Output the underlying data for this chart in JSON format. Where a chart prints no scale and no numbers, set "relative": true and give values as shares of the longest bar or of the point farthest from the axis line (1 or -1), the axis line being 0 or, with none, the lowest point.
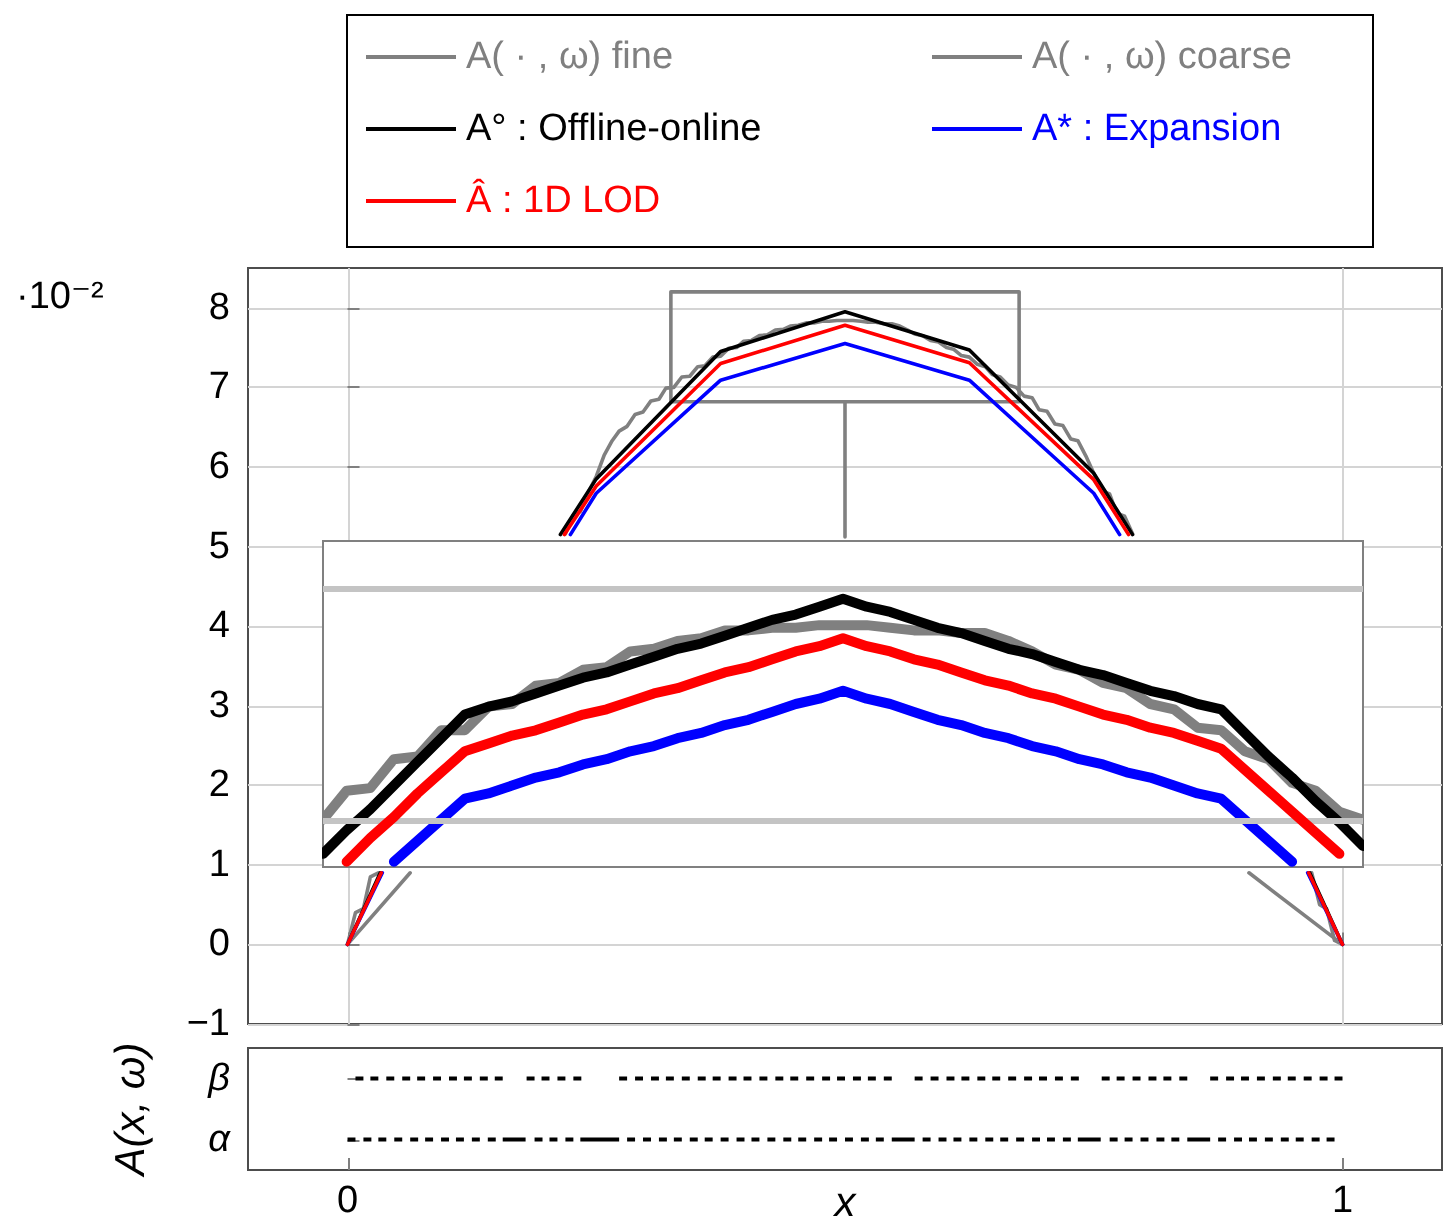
{
  "chart_data": [
    {
      "type": "line",
      "series": [
        {
          "color": "#808080",
          "x": [
            0.5,
            0.325,
            0.325,
            0.675,
            0.675,
            0.5,
            0.5
          ],
          "values": [
            6.82,
            6.82,
            8.2,
            8.2,
            6.82,
            6.82,
            5.12
          ]
        },
        {
          "name": "A( · , ω) fine",
          "color": "#808080",
          "x": [
            0,
            0.008,
            0.016,
            0.023,
            0.031,
            0.12,
            0.219,
            0.227,
            0.234,
            0.242,
            0.25,
            0.258,
            0.266,
            0.273,
            0.281,
            0.289,
            0.297,
            0.305,
            0.313,
            0.32,
            0.328,
            0.336,
            0.344,
            0.352,
            0.359,
            0.367,
            0.375,
            0.383,
            0.391,
            0.398,
            0.406,
            0.414,
            0.422,
            0.43,
            0.438,
            0.445,
            0.453,
            0.461,
            0.469,
            0.477,
            0.484,
            0.492,
            0.5,
            0.508,
            0.516,
            0.523,
            0.531,
            0.539,
            0.547,
            0.555,
            0.563,
            0.57,
            0.578,
            0.586,
            0.594,
            0.602,
            0.609,
            0.617,
            0.625,
            0.633,
            0.641,
            0.648,
            0.656,
            0.664,
            0.672,
            0.68,
            0.688,
            0.695,
            0.703,
            0.711,
            0.719,
            0.727,
            0.734,
            0.742,
            0.75,
            0.758,
            0.766,
            0.773,
            0.781,
            0.789,
            0.88,
            0.969,
            0.977,
            0.984,
            0.992,
            1
          ],
          "values": [
            0,
            0.4,
            0.45,
            0.85,
            0.9,
            null,
            5.16,
            5.4,
            5.44,
            5.68,
            5.88,
            6.15,
            6.33,
            6.45,
            6.51,
            6.66,
            6.69,
            6.83,
            6.85,
            6.99,
            7.0,
            7.13,
            7.14,
            7.26,
            7.27,
            7.38,
            7.39,
            7.49,
            7.5,
            7.58,
            7.59,
            7.65,
            7.66,
            7.72,
            7.73,
            7.77,
            7.78,
            7.81,
            7.81,
            7.83,
            7.83,
            7.84,
            7.84,
            7.84,
            7.83,
            7.82,
            7.82,
            7.8,
            7.8,
            7.77,
            7.72,
            7.67,
            7.65,
            7.59,
            7.57,
            7.5,
            7.48,
            7.4,
            7.38,
            7.29,
            7.26,
            7.16,
            7.13,
            7.03,
            7.0,
            6.89,
            6.87,
            6.72,
            6.7,
            6.54,
            6.52,
            6.35,
            6.33,
            6.14,
            5.92,
            5.7,
            5.66,
            5.42,
            5.38,
            5.16,
            null,
            0.9,
            0.5,
            0.45,
            0.05,
            0
          ]
        },
        {
          "name": "A( · , ω) coarse",
          "color": "#808080",
          "x": [
            0,
            0.063,
            0.5,
            0.906,
            1
          ],
          "values": [
            0,
            0.9,
            null,
            0.9,
            0
          ]
        },
        {
          "name": "A° : Offline-online",
          "color": "#000000",
          "x": [
            0,
            0.033,
            0.125,
            0.214,
            0.25,
            0.375,
            0.5,
            0.625,
            0.75,
            0.789,
            0.875,
            0.967,
            1
          ],
          "values": [
            0,
            0.9,
            null,
            5.15,
            5.85,
            7.45,
            7.95,
            7.47,
            5.92,
            5.15,
            null,
            0.9,
            0
          ]
        },
        {
          "name": "A* : Expansion",
          "color": "#0000ff",
          "x": [
            0,
            0.035,
            0.125,
            0.224,
            0.25,
            0.375,
            0.5,
            0.625,
            0.75,
            0.776,
            0.875,
            0.965,
            1
          ],
          "values": [
            0,
            0.9,
            null,
            5.15,
            5.67,
            7.09,
            7.55,
            7.09,
            5.67,
            5.15,
            null,
            0.9,
            0
          ]
        },
        {
          "name": "Â : 1D LOD",
          "color": "#ff0000",
          "x": [
            0,
            0.034,
            0.125,
            0.218,
            0.25,
            0.375,
            0.5,
            0.625,
            0.75,
            0.785,
            0.875,
            0.966,
            1
          ],
          "values": [
            0,
            0.9,
            null,
            5.15,
            5.76,
            7.3,
            7.78,
            7.31,
            5.84,
            5.15,
            null,
            0.9,
            0
          ]
        }
      ],
      "xlim": [
        -0.1,
        1.1
      ],
      "xticks": [
        {
          "value": 0,
          "label": null
        },
        {
          "value": 1,
          "label": null
        }
      ],
      "ylim": [
        -1,
        8.5
      ],
      "yticks": [
        -1,
        0,
        1,
        2,
        3,
        4,
        5,
        6,
        7,
        8
      ],
      "tick_labels": "y",
      "grid": true,
      "legend": "top",
      "annotations": [
        "·10⁻²"
      ]
    },
    {
      "type": "line",
      "relative": true,
      "categories": [
        null,
        null,
        null,
        null,
        null,
        null,
        null,
        null,
        null,
        null,
        null,
        null,
        null,
        null,
        null,
        null,
        null,
        null,
        null,
        null,
        null,
        null,
        null,
        null,
        null,
        null,
        null,
        null,
        null,
        null,
        null,
        null,
        null,
        null,
        null,
        null,
        null,
        null,
        null,
        null,
        null,
        null,
        null,
        null,
        null
      ],
      "series": [
        {
          "color": "#808080",
          "values": [
            0.16,
            0.27,
            0.28,
            0.39,
            0.4,
            0.5,
            0.5,
            0.59,
            0.6,
            0.67,
            0.68,
            0.73,
            0.74,
            0.8,
            0.81,
            0.84,
            0.85,
            0.88,
            0.88,
            0.89,
            0.89,
            0.9,
            0.9,
            0.9,
            0.89,
            0.88,
            0.88,
            0.87,
            0.87,
            0.84,
            0.8,
            0.75,
            0.73,
            0.68,
            0.66,
            0.6,
            0.58,
            0.51,
            0.5,
            0.42,
            0.39,
            0.3,
            0.27,
            0.19,
            0.16
          ]
        },
        {
          "color": "#000000",
          "values": [
            0.03,
            0.12,
            0.2,
            0.29,
            0.38,
            0.47,
            0.56,
            0.59,
            0.61,
            0.64,
            0.67,
            0.7,
            0.72,
            0.75,
            0.78,
            0.81,
            0.83,
            0.86,
            0.89,
            0.92,
            0.94,
            0.97,
            1,
            0.97,
            0.95,
            0.92,
            0.89,
            0.87,
            0.84,
            0.81,
            0.79,
            0.76,
            0.73,
            0.71,
            0.68,
            0.65,
            0.63,
            0.6,
            0.58,
            0.49,
            0.4,
            0.32,
            0.23,
            0.15,
            0.06
          ]
        },
        {
          "color": "#0000ff",
          "values": [
            null,
            null,
            null,
            0,
            0.08,
            0.16,
            0.24,
            0.26,
            0.29,
            0.32,
            0.34,
            0.37,
            0.39,
            0.42,
            0.44,
            0.47,
            0.49,
            0.52,
            0.54,
            0.57,
            0.6,
            0.62,
            0.65,
            0.62,
            0.6,
            0.57,
            0.54,
            0.52,
            0.49,
            0.47,
            0.44,
            0.42,
            0.39,
            0.37,
            0.34,
            0.32,
            0.29,
            0.26,
            0.24,
            0.16,
            0.08,
            0,
            null,
            null,
            null
          ]
        },
        {
          "color": "#ff0000",
          "values": [
            null,
            0,
            0.09,
            0.17,
            0.26,
            0.34,
            0.42,
            0.45,
            0.48,
            0.5,
            0.53,
            0.56,
            0.58,
            0.61,
            0.64,
            0.66,
            0.69,
            0.72,
            0.74,
            0.77,
            0.8,
            0.82,
            0.85,
            0.82,
            0.8,
            0.77,
            0.75,
            0.72,
            0.69,
            0.67,
            0.64,
            0.62,
            0.59,
            0.56,
            0.54,
            0.51,
            0.49,
            0.46,
            0.43,
            0.35,
            0.27,
            0.19,
            0.11,
            0.03,
            null
          ]
        }
      ],
      "ref_lines": [
        {
          "axis": "y",
          "value": 0.16,
          "color": "#c4c4c4"
        },
        {
          "axis": "y",
          "value": 1.04,
          "color": "#c4c4c4"
        }
      ],
      "tick_labels": false
    },
    {
      "type": "bar",
      "orientation": "horizontal",
      "categories": [
        "β",
        "α"
      ],
      "series": [
        {
          "color": "#000000",
          "base": [
            0.008,
            0
          ],
          "values": [
            0.008,
            0.008
          ]
        },
        {
          "color": "#000000",
          "base": [
            0.023,
            0.016
          ],
          "values": [
            0.008,
            0.008
          ]
        },
        {
          "color": "#000000",
          "base": [
            0.039,
            0.031
          ],
          "values": [
            0.008,
            0.008
          ]
        },
        {
          "color": "#000000",
          "base": [
            0.055,
            0.047
          ],
          "values": [
            0.008,
            0.008
          ]
        },
        {
          "color": "#000000",
          "base": [
            0.07,
            0.063
          ],
          "values": [
            0.008,
            0.008
          ]
        },
        {
          "color": "#000000",
          "base": [
            0.086,
            0.078
          ],
          "values": [
            0.008,
            0.008
          ]
        },
        {
          "color": "#000000",
          "base": [
            0.102,
            0.094
          ],
          "values": [
            0.008,
            0.008
          ]
        },
        {
          "color": "#000000",
          "base": [
            0.117,
            0.109
          ],
          "values": [
            0.008,
            0.008
          ]
        },
        {
          "color": "#000000",
          "base": [
            0.133,
            0.125
          ],
          "values": [
            0.008,
            0.008
          ]
        },
        {
          "color": "#000000",
          "base": [
            0.148,
            0.141
          ],
          "values": [
            0.008,
            0.008
          ]
        },
        {
          "color": "#000000",
          "base": [
            0.18,
            0.156
          ],
          "values": [
            0.008,
            0.023
          ]
        },
        {
          "color": "#000000",
          "base": [
            0.195,
            0.188
          ],
          "values": [
            0.008,
            0.008
          ]
        },
        {
          "color": "#000000",
          "base": [
            0.211,
            0.203
          ],
          "values": [
            0.008,
            0.008
          ]
        },
        {
          "color": "#000000",
          "base": [
            0.227,
            0.219
          ],
          "values": [
            0.008,
            0.008
          ]
        },
        {
          "color": "#000000",
          "base": [
            0.273,
            0.234
          ],
          "values": [
            0.008,
            0.039
          ]
        },
        {
          "color": "#000000",
          "base": [
            0.289,
            0.281
          ],
          "values": [
            0.008,
            0.008
          ]
        },
        {
          "color": "#000000",
          "base": [
            0.305,
            0.297
          ],
          "values": [
            0.008,
            0.008
          ]
        },
        {
          "color": "#000000",
          "base": [
            0.32,
            0.313
          ],
          "values": [
            0.008,
            0.008
          ]
        },
        {
          "color": "#000000",
          "base": [
            0.336,
            0.328
          ],
          "values": [
            0.008,
            0.008
          ]
        },
        {
          "color": "#000000",
          "base": [
            0.352,
            0.344
          ],
          "values": [
            0.008,
            0.008
          ]
        },
        {
          "color": "#000000",
          "base": [
            0.367,
            0.359
          ],
          "values": [
            0.008,
            0.008
          ]
        },
        {
          "color": "#000000",
          "base": [
            0.383,
            0.375
          ],
          "values": [
            0.008,
            0.008
          ]
        },
        {
          "color": "#000000",
          "base": [
            0.398,
            0.391
          ],
          "values": [
            0.008,
            0.008
          ]
        },
        {
          "color": "#000000",
          "base": [
            0.414,
            0.406
          ],
          "values": [
            0.008,
            0.008
          ]
        },
        {
          "color": "#000000",
          "base": [
            0.43,
            0.422
          ],
          "values": [
            0.008,
            0.008
          ]
        },
        {
          "color": "#000000",
          "base": [
            0.445,
            0.438
          ],
          "values": [
            0.008,
            0.008
          ]
        },
        {
          "color": "#000000",
          "base": [
            0.461,
            0.453
          ],
          "values": [
            0.008,
            0.008
          ]
        },
        {
          "color": "#000000",
          "base": [
            0.477,
            0.469
          ],
          "values": [
            0.008,
            0.008
          ]
        },
        {
          "color": "#000000",
          "base": [
            0.492,
            0.484
          ],
          "values": [
            0.008,
            0.008
          ]
        },
        {
          "color": "#000000",
          "base": [
            0.508,
            0.5
          ],
          "values": [
            0.008,
            0.008
          ]
        },
        {
          "color": "#000000",
          "base": [
            0.523,
            0.516
          ],
          "values": [
            0.008,
            0.008
          ]
        },
        {
          "color": "#000000",
          "base": [
            0.539,
            0.531
          ],
          "values": [
            0.008,
            0.008
          ]
        },
        {
          "color": "#000000",
          "base": [
            0.57,
            0.547
          ],
          "values": [
            0.008,
            0.023
          ]
        },
        {
          "color": "#000000",
          "base": [
            0.586,
            0.578
          ],
          "values": [
            0.008,
            0.008
          ]
        },
        {
          "color": "#000000",
          "base": [
            0.602,
            0.594
          ],
          "values": [
            0.008,
            0.008
          ]
        },
        {
          "color": "#000000",
          "base": [
            0.617,
            0.609
          ],
          "values": [
            0.008,
            0.008
          ]
        },
        {
          "color": "#000000",
          "base": [
            0.633,
            0.625
          ],
          "values": [
            0.008,
            0.008
          ]
        },
        {
          "color": "#000000",
          "base": [
            0.648,
            0.641
          ],
          "values": [
            0.008,
            0.008
          ]
        },
        {
          "color": "#000000",
          "base": [
            0.664,
            0.656
          ],
          "values": [
            0.008,
            0.008
          ]
        },
        {
          "color": "#000000",
          "base": [
            0.68,
            0.672
          ],
          "values": [
            0.008,
            0.008
          ]
        },
        {
          "color": "#000000",
          "base": [
            0.695,
            0.688
          ],
          "values": [
            0.008,
            0.008
          ]
        },
        {
          "color": "#000000",
          "base": [
            0.711,
            0.703
          ],
          "values": [
            0.008,
            0.008
          ]
        },
        {
          "color": "#000000",
          "base": [
            0.727,
            0.719
          ],
          "values": [
            0.008,
            0.008
          ]
        },
        {
          "color": "#000000",
          "base": [
            0.758,
            0.734
          ],
          "values": [
            0.008,
            0.023
          ]
        },
        {
          "color": "#000000",
          "base": [
            0.773,
            0.766
          ],
          "values": [
            0.008,
            0.008
          ]
        },
        {
          "color": "#000000",
          "base": [
            0.789,
            0.781
          ],
          "values": [
            0.008,
            0.008
          ]
        },
        {
          "color": "#000000",
          "base": [
            0.805,
            0.797
          ],
          "values": [
            0.008,
            0.008
          ]
        },
        {
          "color": "#000000",
          "base": [
            0.82,
            0.813
          ],
          "values": [
            0.008,
            0.008
          ]
        },
        {
          "color": "#000000",
          "base": [
            0.836,
            0.828
          ],
          "values": [
            0.008,
            0.008
          ]
        },
        {
          "color": "#000000",
          "base": [
            0.867,
            0.844
          ],
          "values": [
            0.008,
            0.023
          ]
        },
        {
          "color": "#000000",
          "base": [
            0.883,
            0.875
          ],
          "values": [
            0.008,
            0.008
          ]
        },
        {
          "color": "#000000",
          "base": [
            0.898,
            0.891
          ],
          "values": [
            0.008,
            0.008
          ]
        },
        {
          "color": "#000000",
          "base": [
            0.914,
            0.906
          ],
          "values": [
            0.008,
            0.008
          ]
        },
        {
          "color": "#000000",
          "base": [
            0.93,
            0.922
          ],
          "values": [
            0.008,
            0.008
          ]
        },
        {
          "color": "#000000",
          "base": [
            0.945,
            0.938
          ],
          "values": [
            0.008,
            0.008
          ]
        },
        {
          "color": "#000000",
          "base": [
            0.961,
            0.953
          ],
          "values": [
            0.008,
            0.008
          ]
        },
        {
          "color": "#000000",
          "base": [
            0.977,
            0.969
          ],
          "values": [
            0.008,
            0.008
          ]
        },
        {
          "color": "#000000",
          "base": [
            0.992,
            0.984
          ],
          "values": [
            0.008,
            0.008
          ]
        }
      ],
      "xlim": [
        -0.1,
        1.1
      ],
      "xticks": [
        0,
        1
      ],
      "xlabel": "x",
      "ylabel": "A(x, ω)"
    }
  ]
}
